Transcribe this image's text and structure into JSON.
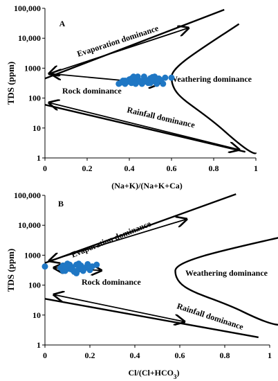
{
  "chart_data": [
    {
      "type": "scatter",
      "panel_label": "A",
      "xlabel": "(Na+K)/(Na+K+Ca)",
      "ylabel": "TDS (ppm)",
      "xlim": [
        0,
        1
      ],
      "ylim": [
        1,
        100000
      ],
      "yscale": "log",
      "x_ticks": [
        "0",
        "0.2",
        "0.4",
        "0.6",
        "0.8",
        "1"
      ],
      "y_ticks": [
        "1",
        "10",
        "100",
        "1000",
        "10,000",
        "100,000"
      ],
      "grid": false,
      "annotations": [
        "Evaporation dominance",
        "Rock dominance",
        "Weathering dominance",
        "Rainfall dominance"
      ],
      "boundaries": {
        "upper": [
          [
            0,
            450
          ],
          [
            0.85,
            90000
          ]
        ],
        "curve": [
          [
            0.92,
            30000
          ],
          [
            0.72,
            3500
          ],
          [
            0.6,
            500
          ],
          [
            0.7,
            70
          ],
          [
            0.85,
            8
          ],
          [
            1.0,
            1.5
          ]
        ],
        "lower": [
          [
            0,
            60
          ],
          [
            0.95,
            1.6
          ]
        ]
      },
      "series": [
        {
          "x": [
            0.35,
            0.36,
            0.37,
            0.38,
            0.39,
            0.4,
            0.41,
            0.42,
            0.43,
            0.44,
            0.45,
            0.46,
            0.47,
            0.48,
            0.49,
            0.5,
            0.51,
            0.52,
            0.53,
            0.54,
            0.55,
            0.56,
            0.57,
            0.38,
            0.41,
            0.44,
            0.47,
            0.5,
            0.53,
            0.45,
            0.48,
            0.42,
            0.51,
            0.6
          ],
          "y": [
            300,
            330,
            380,
            300,
            350,
            420,
            320,
            380,
            300,
            450,
            380,
            300,
            520,
            400,
            320,
            460,
            380,
            520,
            300,
            450,
            400,
            300,
            480,
            380,
            450,
            520,
            350,
            320,
            400,
            350,
            380,
            520,
            500,
            480
          ]
        }
      ]
    },
    {
      "type": "scatter",
      "panel_label": "B",
      "xlabel": "Cl/(Cl+HCO3)",
      "ylabel": "TDS (ppm)",
      "xlim": [
        0,
        1
      ],
      "ylim": [
        1,
        100000
      ],
      "yscale": "log",
      "x_ticks": [
        "0",
        "0.2",
        "0.4",
        "0.6",
        "0.8",
        "1"
      ],
      "y_ticks": [
        "1",
        "10",
        "100",
        "1000",
        "10,000",
        "100,000"
      ],
      "grid": false,
      "annotations": [
        "Evaporation dominance",
        "Rock dominance",
        "Weathering dominance",
        "Rainfall dominance"
      ],
      "boundaries": {
        "upper": [
          [
            0,
            550
          ],
          [
            0.85,
            110000
          ]
        ],
        "curve": [
          [
            1.05,
            4000
          ],
          [
            0.8,
            1500
          ],
          [
            0.58,
            300
          ],
          [
            0.72,
            50
          ],
          [
            0.88,
            13
          ],
          [
            1.05,
            5
          ]
        ],
        "lower": [
          [
            0,
            35
          ],
          [
            0.95,
            1.8
          ]
        ]
      },
      "series": [
        {
          "x": [
            0.0,
            0.07,
            0.08,
            0.09,
            0.1,
            0.11,
            0.12,
            0.13,
            0.14,
            0.15,
            0.16,
            0.17,
            0.18,
            0.19,
            0.2,
            0.21,
            0.23,
            0.08,
            0.1,
            0.12,
            0.14,
            0.16,
            0.18,
            0.11,
            0.13,
            0.15,
            0.17,
            0.09
          ],
          "y": [
            420,
            380,
            450,
            300,
            520,
            350,
            400,
            280,
            480,
            330,
            420,
            300,
            380,
            500,
            320,
            420,
            480,
            300,
            380,
            330,
            250,
            450,
            380,
            480,
            300,
            520,
            330,
            420
          ]
        }
      ]
    }
  ]
}
